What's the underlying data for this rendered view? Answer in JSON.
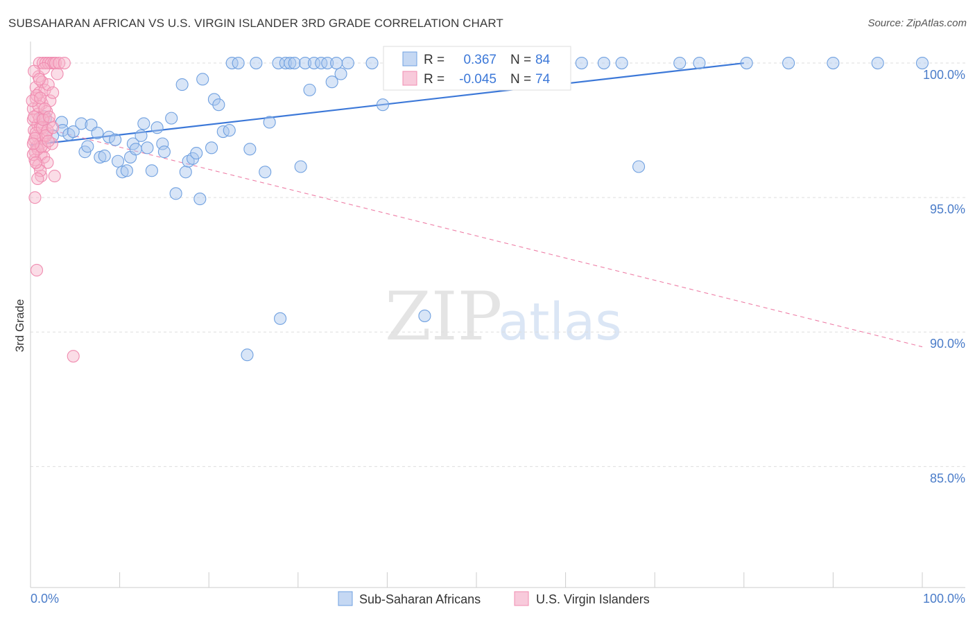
{
  "chart_data": {
    "type": "scatter",
    "title": "SUBSAHARAN AFRICAN VS U.S. VIRGIN ISLANDER 3RD GRADE CORRELATION CHART",
    "source": "Source: ZipAtlas.com",
    "ylabel": "3rd Grade",
    "xlabel": "",
    "xlim": [
      0,
      100
    ],
    "ylim": [
      80.5,
      100.8
    ],
    "x_tick_labels": [
      "0.0%",
      "100.0%"
    ],
    "y_ticks": [
      85,
      90,
      95,
      100
    ],
    "y_tick_labels": [
      "85.0%",
      "90.0%",
      "95.0%",
      "100.0%"
    ],
    "watermark": {
      "zip": "ZIP",
      "atlas": "atlas"
    },
    "stats": [
      {
        "r_label": "R = ",
        "r_value": "0.367",
        "n_label": "N = ",
        "n_value": "84",
        "color": "#6fa0e0"
      },
      {
        "r_label": "R = ",
        "r_value": "-0.045",
        "n_label": "N = ",
        "n_value": "74",
        "color": "#f08cb0"
      }
    ],
    "series": [
      {
        "name": "Sub-Saharan Africans",
        "color": "#6fa0e0",
        "trend": {
          "x": [
            0,
            80
          ],
          "y": [
            96.95,
            100.0
          ]
        },
        "points": [
          [
            1.5,
            97.95
          ],
          [
            2.5,
            97.3
          ],
          [
            3.5,
            97.8
          ],
          [
            3.6,
            97.5
          ],
          [
            4.3,
            97.35
          ],
          [
            4.8,
            97.45
          ],
          [
            5.7,
            97.75
          ],
          [
            6.1,
            96.7
          ],
          [
            6.4,
            96.9
          ],
          [
            6.8,
            97.7
          ],
          [
            7.5,
            97.4
          ],
          [
            7.8,
            96.5
          ],
          [
            8.3,
            96.55
          ],
          [
            8.8,
            97.25
          ],
          [
            9.5,
            97.15
          ],
          [
            9.8,
            96.35
          ],
          [
            10.3,
            95.95
          ],
          [
            10.8,
            96.0
          ],
          [
            11.2,
            96.5
          ],
          [
            11.5,
            97.0
          ],
          [
            11.8,
            96.8
          ],
          [
            12.4,
            97.3
          ],
          [
            12.7,
            97.75
          ],
          [
            13.1,
            96.85
          ],
          [
            13.6,
            96.0
          ],
          [
            14.2,
            97.6
          ],
          [
            14.8,
            97.0
          ],
          [
            15.0,
            96.7
          ],
          [
            15.8,
            97.95
          ],
          [
            16.3,
            95.15
          ],
          [
            17.0,
            99.2
          ],
          [
            17.4,
            95.95
          ],
          [
            17.7,
            96.35
          ],
          [
            18.2,
            96.45
          ],
          [
            18.6,
            96.65
          ],
          [
            19.0,
            94.95
          ],
          [
            19.3,
            99.4
          ],
          [
            20.3,
            96.85
          ],
          [
            20.6,
            98.65
          ],
          [
            21.1,
            98.45
          ],
          [
            21.6,
            97.45
          ],
          [
            22.3,
            97.5
          ],
          [
            22.6,
            100.0
          ],
          [
            23.3,
            100.0
          ],
          [
            24.3,
            89.15
          ],
          [
            24.6,
            96.8
          ],
          [
            25.3,
            100.0
          ],
          [
            26.3,
            95.95
          ],
          [
            26.8,
            97.8
          ],
          [
            27.8,
            100.0
          ],
          [
            28.0,
            90.5
          ],
          [
            28.6,
            100.0
          ],
          [
            29.1,
            100.0
          ],
          [
            29.6,
            100.0
          ],
          [
            30.3,
            96.15
          ],
          [
            30.8,
            100.0
          ],
          [
            31.3,
            99.0
          ],
          [
            31.8,
            100.0
          ],
          [
            32.6,
            100.0
          ],
          [
            33.3,
            100.0
          ],
          [
            33.8,
            99.3
          ],
          [
            34.3,
            100.0
          ],
          [
            34.8,
            99.6
          ],
          [
            35.6,
            100.0
          ],
          [
            38.3,
            100.0
          ],
          [
            39.5,
            98.45
          ],
          [
            42.3,
            100.0
          ],
          [
            44.2,
            90.6
          ],
          [
            46.3,
            100.0
          ],
          [
            47.8,
            100.0
          ],
          [
            53.3,
            100.0
          ],
          [
            54.3,
            100.0
          ],
          [
            56.3,
            100.0
          ],
          [
            61.8,
            100.0
          ],
          [
            64.3,
            100.0
          ],
          [
            66.3,
            100.0
          ],
          [
            68.2,
            96.15
          ],
          [
            72.8,
            100.0
          ],
          [
            75.0,
            100.0
          ],
          [
            80.3,
            100.0
          ],
          [
            85.0,
            100.0
          ],
          [
            90.0,
            100.0
          ],
          [
            95.0,
            100.0
          ],
          [
            100.0,
            100.0
          ]
        ]
      },
      {
        "name": "U.S. Virgin Islanders",
        "color": "#f08cb0",
        "trend": {
          "x": [
            0,
            100
          ],
          "y": [
            97.7,
            89.45
          ]
        },
        "points": [
          [
            0.3,
            98.3
          ],
          [
            0.3,
            97.9
          ],
          [
            0.4,
            97.5
          ],
          [
            0.4,
            97.1
          ],
          [
            0.5,
            96.7
          ],
          [
            0.5,
            96.4
          ],
          [
            0.6,
            98.7
          ],
          [
            0.6,
            99.1
          ],
          [
            0.7,
            97.3
          ],
          [
            0.7,
            96.9
          ],
          [
            0.8,
            98.1
          ],
          [
            0.8,
            97.7
          ],
          [
            0.9,
            99.5
          ],
          [
            0.9,
            96.2
          ],
          [
            1.0,
            100.0
          ],
          [
            1.0,
            98.9
          ],
          [
            1.1,
            97.6
          ],
          [
            1.1,
            97.0
          ],
          [
            1.2,
            95.8
          ],
          [
            1.2,
            96.6
          ],
          [
            1.3,
            99.3
          ],
          [
            1.3,
            98.5
          ],
          [
            1.4,
            100.0
          ],
          [
            1.4,
            97.2
          ],
          [
            1.5,
            96.5
          ],
          [
            1.5,
            98.0
          ],
          [
            1.6,
            99.0
          ],
          [
            1.6,
            96.9
          ],
          [
            1.7,
            100.0
          ],
          [
            1.8,
            97.4
          ],
          [
            1.8,
            98.2
          ],
          [
            1.9,
            96.3
          ],
          [
            2.0,
            99.2
          ],
          [
            2.0,
            100.0
          ],
          [
            2.1,
            97.8
          ],
          [
            2.2,
            98.6
          ],
          [
            2.3,
            100.0
          ],
          [
            2.4,
            97.0
          ],
          [
            2.5,
            98.9
          ],
          [
            2.6,
            100.0
          ],
          [
            2.7,
            95.8
          ],
          [
            2.8,
            100.0
          ],
          [
            3.0,
            99.6
          ],
          [
            3.2,
            100.0
          ],
          [
            0.5,
            95.0
          ],
          [
            0.7,
            92.3
          ],
          [
            1.0,
            97.95
          ],
          [
            0.4,
            98.0
          ],
          [
            0.6,
            97.4
          ],
          [
            0.8,
            96.8
          ],
          [
            1.1,
            96.0
          ],
          [
            1.3,
            97.6
          ],
          [
            0.9,
            98.4
          ],
          [
            1.5,
            99.8
          ],
          [
            0.3,
            96.6
          ],
          [
            0.5,
            97.2
          ],
          [
            0.7,
            98.8
          ],
          [
            1.2,
            96.9
          ],
          [
            1.4,
            97.9
          ],
          [
            1.6,
            98.3
          ],
          [
            1.9,
            97.5
          ],
          [
            2.1,
            98.0
          ],
          [
            0.4,
            99.7
          ],
          [
            0.6,
            96.3
          ],
          [
            0.8,
            95.7
          ],
          [
            1.0,
            99.4
          ],
          [
            1.7,
            97.3
          ],
          [
            0.3,
            97.0
          ],
          [
            2.5,
            97.6
          ],
          [
            3.8,
            100.0
          ],
          [
            0.2,
            98.6
          ],
          [
            1.1,
            98.7
          ],
          [
            2.0,
            97.1
          ],
          [
            4.8,
            89.1
          ]
        ]
      }
    ]
  }
}
